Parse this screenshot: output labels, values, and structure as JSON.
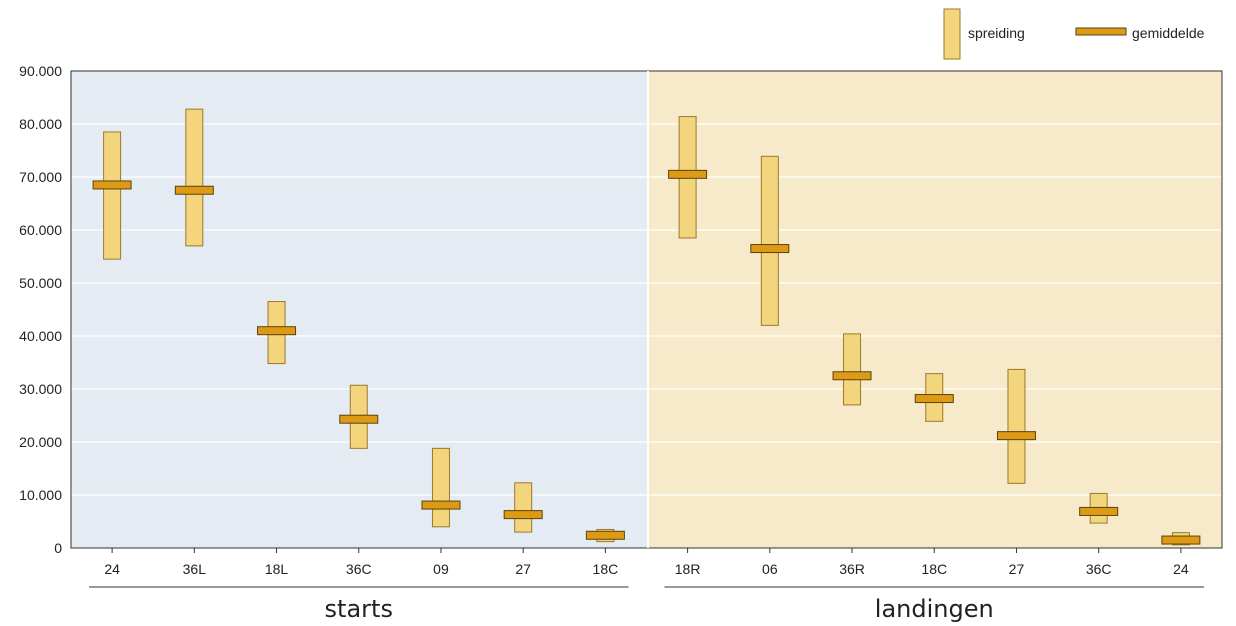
{
  "chart_data": {
    "type": "range-bar",
    "title": "",
    "xlabel": "",
    "ylabel": "",
    "ylim": [
      0,
      90000
    ],
    "y_ticks": [
      {
        "value": 0,
        "label": "0"
      },
      {
        "value": 10000,
        "label": "10.000"
      },
      {
        "value": 20000,
        "label": "20.000"
      },
      {
        "value": 30000,
        "label": "30.000"
      },
      {
        "value": 40000,
        "label": "40.000"
      },
      {
        "value": 50000,
        "label": "50.000"
      },
      {
        "value": 60000,
        "label": "60.000"
      },
      {
        "value": 70000,
        "label": "70.000"
      },
      {
        "value": 80000,
        "label": "80.000"
      },
      {
        "value": 90000,
        "label": "90.000"
      }
    ],
    "grid": true,
    "legend_position": "top-right",
    "legend": {
      "range_label": "spreiding",
      "mean_label": "gemiddelde"
    },
    "colors": {
      "range_fill": "#f2d57c",
      "range_stroke": "#9a7a2a",
      "mean_fill": "#dd9a14",
      "mean_stroke": "#5a4210",
      "axis": "#333333",
      "grid": "#ffffff"
    },
    "groups": [
      {
        "label": "starts",
        "background": "#e4ebf2",
        "categories": [
          "24",
          "36L",
          "18L",
          "36C",
          "09",
          "27",
          "18C"
        ],
        "min": [
          54500,
          57000,
          34800,
          18800,
          4000,
          3000,
          1200
        ],
        "max": [
          78500,
          82800,
          46500,
          30700,
          18800,
          12300,
          3500
        ],
        "mean": [
          68500,
          67500,
          41000,
          24300,
          8100,
          6300,
          2400
        ]
      },
      {
        "label": "landingen",
        "background": "#f7eaca",
        "categories": [
          "18R",
          "06",
          "36R",
          "18C",
          "27",
          "36C",
          "24"
        ],
        "min": [
          58500,
          42000,
          27000,
          23900,
          12200,
          4700,
          600
        ],
        "max": [
          81400,
          73900,
          40400,
          32900,
          33700,
          10300,
          2900
        ],
        "mean": [
          70500,
          56500,
          32500,
          28200,
          21200,
          6900,
          1500
        ]
      }
    ]
  }
}
